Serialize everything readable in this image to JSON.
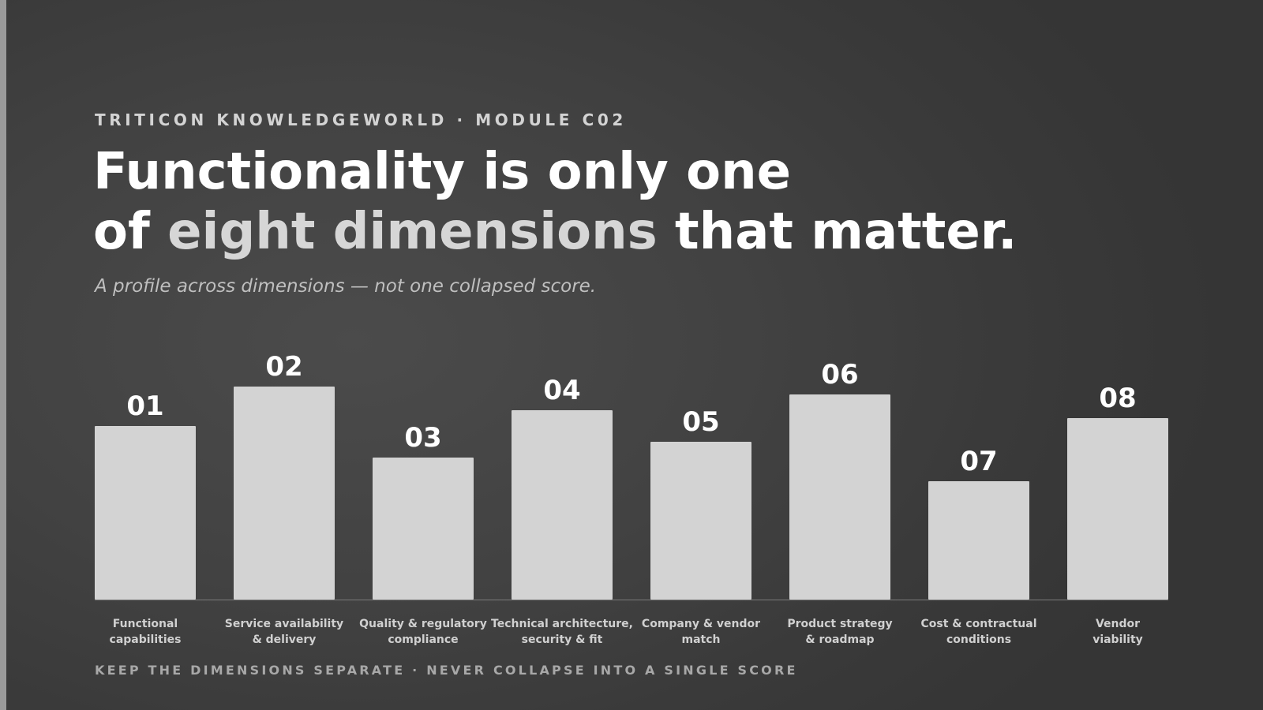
{
  "header": {
    "eyebrow": "TRITICON KNOWLEDGEWORLD · MODULE C02",
    "title_line1": "Functionality is only one",
    "title_line2_prefix": "of ",
    "title_line2_accent": "eight dimensions",
    "title_line2_suffix": " that matter.",
    "subtitle": "A profile across dimensions — not one collapsed score."
  },
  "footer": {
    "note": "KEEP THE DIMENSIONS SEPARATE · NEVER COLLAPSE INTO A SINGLE SCORE"
  },
  "colors": {
    "bar": "#d3d3d3",
    "bar_label": "#ffffff",
    "category_label": "#d0d0d0",
    "baseline": "#7a7a7a"
  },
  "chart_data": {
    "type": "bar",
    "categories": [
      [
        "Functional",
        "capabilities"
      ],
      [
        "Service availability",
        "& delivery"
      ],
      [
        "Quality & regulatory",
        "compliance"
      ],
      [
        "Technical architecture,",
        "security & fit"
      ],
      [
        "Company & vendor",
        "match"
      ],
      [
        "Product strategy",
        "& roadmap"
      ],
      [
        "Cost & contractual",
        "conditions"
      ],
      [
        "Vendor",
        "viability"
      ]
    ],
    "bar_labels": [
      "01",
      "02",
      "03",
      "04",
      "05",
      "06",
      "07",
      "08"
    ],
    "values": [
      220,
      270,
      180,
      240,
      200,
      260,
      150,
      230
    ],
    "ylim": [
      0,
      270
    ],
    "grid": false,
    "legend": "none",
    "axis_ticks_visible": false
  }
}
